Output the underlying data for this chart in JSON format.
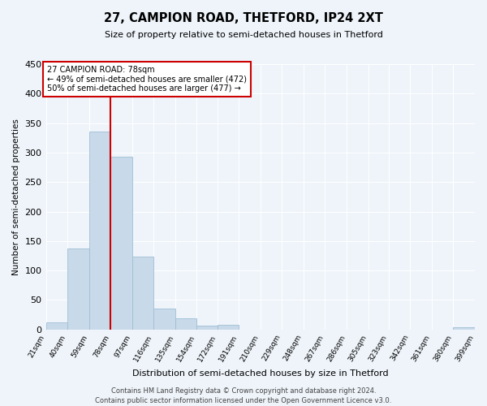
{
  "title": "27, CAMPION ROAD, THETFORD, IP24 2XT",
  "subtitle": "Size of property relative to semi-detached houses in Thetford",
  "xlabel": "Distribution of semi-detached houses by size in Thetford",
  "ylabel": "Number of semi-detached properties",
  "bar_edges": [
    21,
    40,
    59,
    78,
    97,
    116,
    135,
    154,
    172,
    191,
    210,
    229,
    248,
    267,
    286,
    305,
    323,
    342,
    361,
    380,
    399
  ],
  "bar_heights": [
    12,
    138,
    336,
    293,
    124,
    36,
    19,
    6,
    8,
    0,
    0,
    0,
    0,
    0,
    0,
    0,
    0,
    0,
    0,
    4
  ],
  "bar_color": "#c8d9ea",
  "bar_edgecolor": "#a0bfd4",
  "vline_x": 78,
  "vline_color": "#cc0000",
  "annotation_text": "27 CAMPION ROAD: 78sqm\n← 49% of semi-detached houses are smaller (472)\n50% of semi-detached houses are larger (477) →",
  "annotation_box_edgecolor": "#cc0000",
  "annotation_box_facecolor": "white",
  "ylim": [
    0,
    450
  ],
  "yticks": [
    0,
    50,
    100,
    150,
    200,
    250,
    300,
    350,
    400,
    450
  ],
  "tick_labels": [
    "21sqm",
    "40sqm",
    "59sqm",
    "78sqm",
    "97sqm",
    "116sqm",
    "135sqm",
    "154sqm",
    "172sqm",
    "191sqm",
    "210sqm",
    "229sqm",
    "248sqm",
    "267sqm",
    "286sqm",
    "305sqm",
    "323sqm",
    "342sqm",
    "361sqm",
    "380sqm",
    "399sqm"
  ],
  "footnote": "Contains HM Land Registry data © Crown copyright and database right 2024.\nContains public sector information licensed under the Open Government Licence v3.0.",
  "bg_color": "#eef4fa",
  "plot_bg_color": "#eef4fa",
  "title_fontsize": 10.5,
  "subtitle_fontsize": 8,
  "ylabel_fontsize": 7.5,
  "xlabel_fontsize": 8,
  "ytick_fontsize": 8,
  "xtick_fontsize": 6.5
}
